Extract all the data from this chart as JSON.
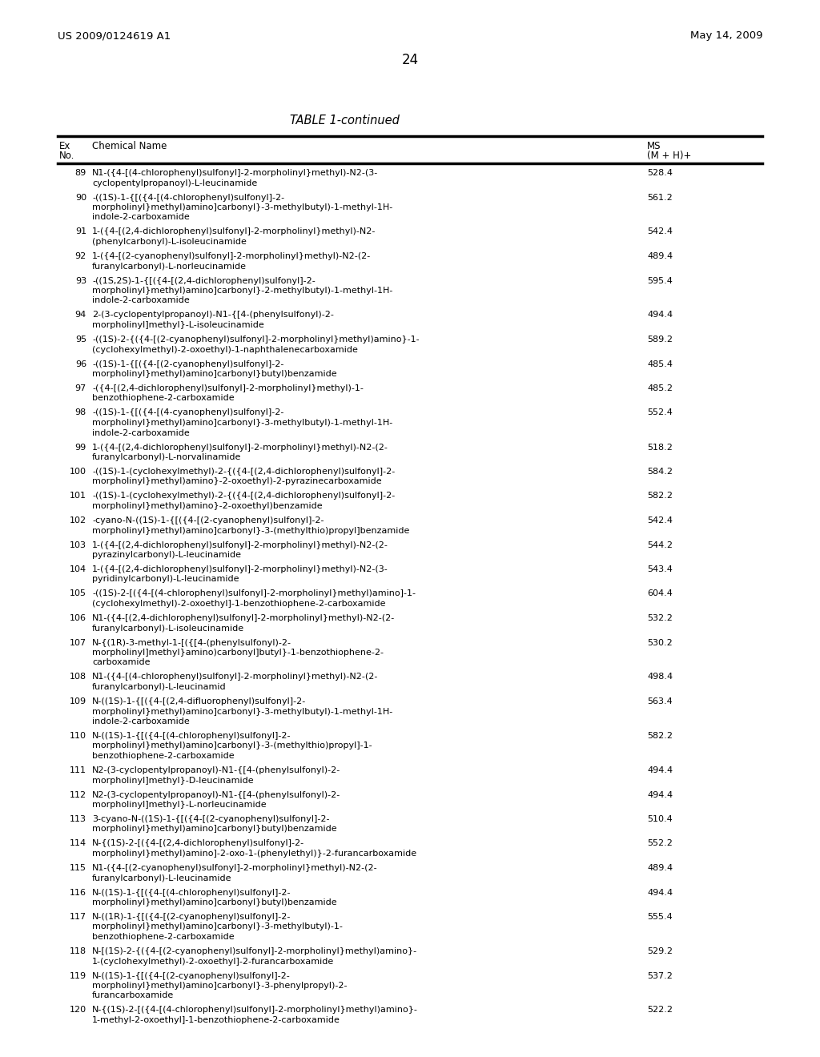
{
  "header_left": "US 2009/0124619 A1",
  "header_right": "May 14, 2009",
  "page_number": "24",
  "table_title": "TABLE 1-continued",
  "rows": [
    [
      "89",
      "N1-({4-[(4-chlorophenyl)sulfonyl]-2-morpholinyl}methyl)-N2-(3-\ncyclopentylpropanoyl)-L-leucinamide",
      "528.4"
    ],
    [
      "90",
      "-((1S)-1-{[({4-[(4-chlorophenyl)sulfonyl]-2-\nmorpholinyl}methyl)amino]carbonyl}-3-methylbutyl)-1-methyl-1H-\nindole-2-carboxamide",
      "561.2"
    ],
    [
      "91",
      "1-({4-[(2,4-dichlorophenyl)sulfonyl]-2-morpholinyl}methyl)-N2-\n(phenylcarbonyl)-L-isoleucinamide",
      "542.4"
    ],
    [
      "92",
      "1-({4-[(2-cyanophenyl)sulfonyl]-2-morpholinyl}methyl)-N2-(2-\nfuranylcarbonyl)-L-norleucinamide",
      "489.4"
    ],
    [
      "93",
      "-((1S,2S)-1-{[({4-[(2,4-dichlorophenyl)sulfonyl]-2-\nmorpholinyl}methyl)amino]carbonyl}-2-methylbutyl)-1-methyl-1H-\nindole-2-carboxamide",
      "595.4"
    ],
    [
      "94",
      "2-(3-cyclopentylpropanoyl)-N1-{[4-(phenylsulfonyl)-2-\nmorpholinyl]methyl}-L-isoleucinamide",
      "494.4"
    ],
    [
      "95",
      "-((1S)-2-{({4-[(2-cyanophenyl)sulfonyl]-2-morpholinyl}methyl)amino}-1-\n(cyclohexylmethyl)-2-oxoethyl)-1-naphthalenecarboxamide",
      "589.2"
    ],
    [
      "96",
      "-((1S)-1-{[({4-[(2-cyanophenyl)sulfonyl]-2-\nmorpholinyl}methyl)amino]carbonyl}butyl)benzamide",
      "485.4"
    ],
    [
      "97",
      "-({4-[(2,4-dichlorophenyl)sulfonyl]-2-morpholinyl}methyl)-1-\nbenzothiophene-2-carboxamide",
      "485.2"
    ],
    [
      "98",
      "-((1S)-1-{[({4-[(4-cyanophenyl)sulfonyl]-2-\nmorpholinyl}methyl)amino]carbonyl}-3-methylbutyl)-1-methyl-1H-\nindole-2-carboxamide",
      "552.4"
    ],
    [
      "99",
      "1-({4-[(2,4-dichlorophenyl)sulfonyl]-2-morpholinyl}methyl)-N2-(2-\nfuranylcarbonyl)-L-norvalinamide",
      "518.2"
    ],
    [
      "100",
      "-((1S)-1-(cyclohexylmethyl)-2-{({4-[(2,4-dichlorophenyl)sulfonyl]-2-\nmorpholinyl}methyl)amino}-2-oxoethyl)-2-pyrazinecarboxamide",
      "584.2"
    ],
    [
      "101",
      "-((1S)-1-(cyclohexylmethyl)-2-{({4-[(2,4-dichlorophenyl)sulfonyl]-2-\nmorpholinyl}methyl)amino}-2-oxoethyl)benzamide",
      "582.2"
    ],
    [
      "102",
      "-cyano-N-((1S)-1-{[({4-[(2-cyanophenyl)sulfonyl]-2-\nmorpholinyl}methyl)amino]carbonyl}-3-(methylthio)propyl]benzamide",
      "542.4"
    ],
    [
      "103",
      "1-({4-[(2,4-dichlorophenyl)sulfonyl]-2-morpholinyl}methyl)-N2-(2-\npyrazinylcarbonyl)-L-leucinamide",
      "544.2"
    ],
    [
      "104",
      "1-({4-[(2,4-dichlorophenyl)sulfonyl]-2-morpholinyl}methyl)-N2-(3-\npyridinylcarbonyl)-L-leucinamide",
      "543.4"
    ],
    [
      "105",
      "-((1S)-2-[({4-[(4-chlorophenyl)sulfonyl]-2-morpholinyl}methyl)amino]-1-\n(cyclohexylmethyl)-2-oxoethyl]-1-benzothiophene-2-carboxamide",
      "604.4"
    ],
    [
      "106",
      "N1-({4-[(2,4-dichlorophenyl)sulfonyl]-2-morpholinyl}methyl)-N2-(2-\nfuranylcarbonyl)-L-isoleucinamide",
      "532.2"
    ],
    [
      "107",
      "N-{(1R)-3-methyl-1-[({[4-(phenylsulfonyl)-2-\nmorpholinyl]methyl}amino)carbonyl]butyl}-1-benzothiophene-2-\ncarboxamide",
      "530.2"
    ],
    [
      "108",
      "N1-({4-[(4-chlorophenyl)sulfonyl]-2-morpholinyl}methyl)-N2-(2-\nfuranylcarbonyl)-L-leucinamid",
      "498.4"
    ],
    [
      "109",
      "N-((1S)-1-{[({4-[(2,4-difluorophenyl)sulfonyl]-2-\nmorpholinyl}methyl)amino]carbonyl}-3-methylbutyl)-1-methyl-1H-\nindole-2-carboxamide",
      "563.4"
    ],
    [
      "110",
      "N-((1S)-1-{[({4-[(4-chlorophenyl)sulfonyl]-2-\nmorpholinyl}methyl)amino]carbonyl}-3-(methylthio)propyl]-1-\nbenzothiophene-2-carboxamide",
      "582.2"
    ],
    [
      "111",
      "N2-(3-cyclopentylpropanoyl)-N1-{[4-(phenylsulfonyl)-2-\nmorpholinyl]methyl}-D-leucinamide",
      "494.4"
    ],
    [
      "112",
      "N2-(3-cyclopentylpropanoyl)-N1-{[4-(phenylsulfonyl)-2-\nmorpholinyl]methyl}-L-norleucinamide",
      "494.4"
    ],
    [
      "113",
      "3-cyano-N-((1S)-1-{[({4-[(2-cyanophenyl)sulfonyl]-2-\nmorpholinyl}methyl)amino]carbonyl}butyl)benzamide",
      "510.4"
    ],
    [
      "114",
      "N-{(1S)-2-[({4-[(2,4-dichlorophenyl)sulfonyl]-2-\nmorpholinyl}methyl)amino]-2-oxo-1-(phenylethyl)}-2-furancarboxamide",
      "552.2"
    ],
    [
      "115",
      "N1-({4-[(2-cyanophenyl)sulfonyl]-2-morpholinyl}methyl)-N2-(2-\nfuranylcarbonyl)-L-leucinamide",
      "489.4"
    ],
    [
      "116",
      "N-((1S)-1-{[({4-[(4-chlorophenyl)sulfonyl]-2-\nmorpholinyl}methyl)amino]carbonyl}butyl)benzamide",
      "494.4"
    ],
    [
      "117",
      "N-((1R)-1-{[({4-[(2-cyanophenyl)sulfonyl]-2-\nmorpholinyl}methyl)amino]carbonyl}-3-methylbutyl)-1-\nbenzothiophene-2-carboxamide",
      "555.4"
    ],
    [
      "118",
      "N-[(1S)-2-{({4-[(2-cyanophenyl)sulfonyl]-2-morpholinyl}methyl)amino}-\n1-(cyclohexylmethyl)-2-oxoethyl]-2-furancarboxamide",
      "529.2"
    ],
    [
      "119",
      "N-((1S)-1-{[({4-[(2-cyanophenyl)sulfonyl]-2-\nmorpholinyl}methyl)amino]carbonyl}-3-phenylpropyl)-2-\nfurancarboxamide",
      "537.2"
    ],
    [
      "120",
      "N-{(1S)-2-[({4-[(4-chlorophenyl)sulfonyl]-2-morpholinyl}methyl)amino}-\n1-methyl-2-oxoethyl]-1-benzothiophene-2-carboxamide",
      "522.2"
    ]
  ]
}
